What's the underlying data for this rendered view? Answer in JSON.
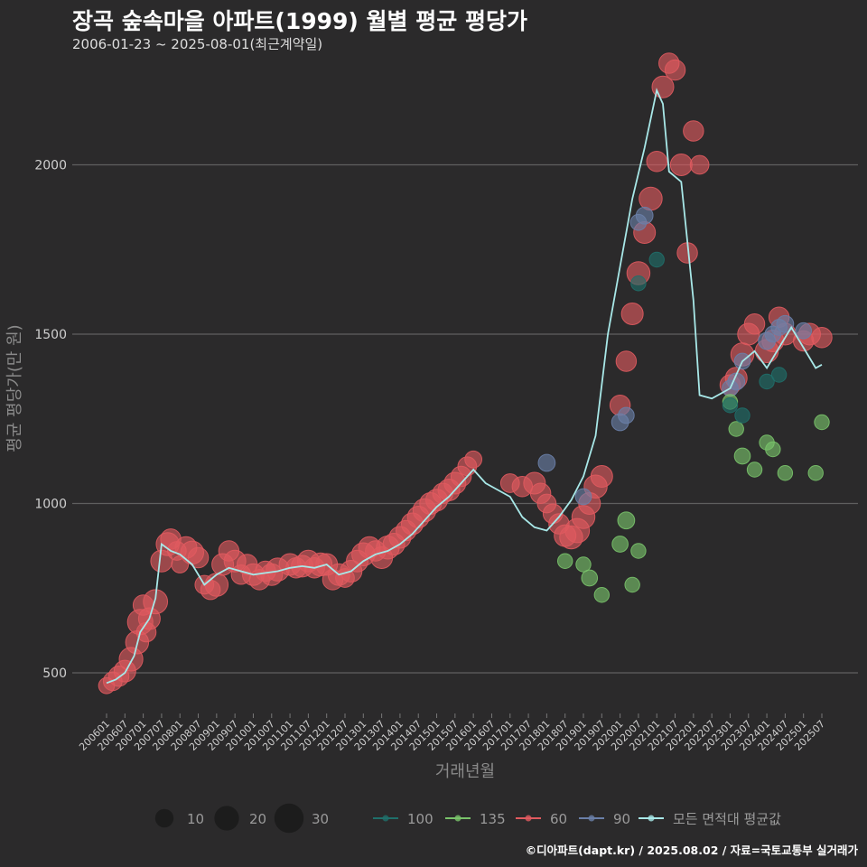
{
  "header": {
    "title": "장곡 숲속마을 아파트(1999) 월별 평균 평당가",
    "subtitle": "2006-01-23 ~ 2025-08-01(최근계약일)"
  },
  "credit": "©디아파트(dapt.kr) / 2025.08.02 / 자료=국토교통부 실거래가",
  "chart_data": {
    "type": "scatter",
    "xlabel": "거래년월",
    "ylabel": "평균 평당가(만 원)",
    "ylim": [
      380,
      2300
    ],
    "yticks": [
      500,
      1000,
      1500,
      2000
    ],
    "grid": true,
    "xticks": [
      "200601",
      "200607",
      "200701",
      "200707",
      "200801",
      "200807",
      "200901",
      "200907",
      "201001",
      "201007",
      "201101",
      "201107",
      "201201",
      "201207",
      "201301",
      "201307",
      "201401",
      "201407",
      "201501",
      "201507",
      "201601",
      "201607",
      "201701",
      "201707",
      "201801",
      "201807",
      "201901",
      "201907",
      "202001",
      "202007",
      "202101",
      "202107",
      "202201",
      "202207",
      "202301",
      "202307",
      "202401",
      "202407",
      "202501",
      "202507"
    ],
    "colors": {
      "100": "#1f6f6a",
      "135": "#79c36a",
      "60": "#e05a5f",
      "90": "#6a7fa8",
      "avg": "#a8e8e8"
    },
    "size_legend": [
      {
        "label": "10",
        "value": 10
      },
      {
        "label": "20",
        "value": 20
      },
      {
        "label": "30",
        "value": 30
      }
    ],
    "color_legend": [
      {
        "key": "100",
        "label": "100"
      },
      {
        "key": "135",
        "label": "135"
      },
      {
        "key": "60",
        "label": "60"
      },
      {
        "key": "90",
        "label": "90"
      },
      {
        "key": "avg",
        "label": "모든 면적대 평균값"
      }
    ],
    "series": [
      {
        "name": "60",
        "key": "60",
        "points": [
          [
            "200601",
            462,
            5
          ],
          [
            "200603",
            475,
            8
          ],
          [
            "200605",
            490,
            10
          ],
          [
            "200607",
            505,
            12
          ],
          [
            "200609",
            540,
            15
          ],
          [
            "200611",
            590,
            14
          ],
          [
            "200612",
            650,
            18
          ],
          [
            "200701",
            700,
            10
          ],
          [
            "200702",
            620,
            9
          ],
          [
            "200703",
            660,
            12
          ],
          [
            "200705",
            710,
            16
          ],
          [
            "200707",
            830,
            12
          ],
          [
            "200709",
            880,
            14
          ],
          [
            "200710",
            895,
            10
          ],
          [
            "200712",
            860,
            8
          ],
          [
            "200801",
            820,
            6
          ],
          [
            "200803",
            870,
            12
          ],
          [
            "200805",
            855,
            14
          ],
          [
            "200807",
            840,
            10
          ],
          [
            "200809",
            760,
            8
          ],
          [
            "200811",
            745,
            9
          ],
          [
            "200901",
            760,
            14
          ],
          [
            "200903",
            820,
            12
          ],
          [
            "200905",
            860,
            10
          ],
          [
            "200907",
            830,
            12
          ],
          [
            "200909",
            790,
            9
          ],
          [
            "200911",
            820,
            10
          ],
          [
            "201001",
            790,
            12
          ],
          [
            "201003",
            775,
            10
          ],
          [
            "201005",
            800,
            10
          ],
          [
            "201007",
            790,
            12
          ],
          [
            "201009",
            805,
            14
          ],
          [
            "201101",
            820,
            12
          ],
          [
            "201103",
            810,
            10
          ],
          [
            "201105",
            815,
            12
          ],
          [
            "201107",
            830,
            12
          ],
          [
            "201109",
            810,
            10
          ],
          [
            "201111",
            820,
            14
          ],
          [
            "201201",
            820,
            12
          ],
          [
            "201203",
            775,
            10
          ],
          [
            "201205",
            790,
            12
          ],
          [
            "201207",
            780,
            8
          ],
          [
            "201209",
            800,
            12
          ],
          [
            "201211",
            830,
            12
          ],
          [
            "201301",
            850,
            14
          ],
          [
            "201303",
            870,
            12
          ],
          [
            "201305",
            860,
            10
          ],
          [
            "201307",
            840,
            12
          ],
          [
            "201309",
            870,
            14
          ],
          [
            "201311",
            880,
            12
          ],
          [
            "201401",
            900,
            12
          ],
          [
            "201403",
            920,
            10
          ],
          [
            "201405",
            940,
            12
          ],
          [
            "201407",
            960,
            12
          ],
          [
            "201409",
            980,
            14
          ],
          [
            "201411",
            1000,
            12
          ],
          [
            "201501",
            1010,
            12
          ],
          [
            "201503",
            1030,
            10
          ],
          [
            "201505",
            1040,
            12
          ],
          [
            "201507",
            1060,
            12
          ],
          [
            "201509",
            1080,
            10
          ],
          [
            "201511",
            1110,
            8
          ],
          [
            "201601",
            1130,
            6
          ],
          [
            "201701",
            1060,
            8
          ],
          [
            "201705",
            1050,
            10
          ],
          [
            "201709",
            1060,
            12
          ],
          [
            "201711",
            1030,
            10
          ],
          [
            "201801",
            1000,
            8
          ],
          [
            "201803",
            970,
            9
          ],
          [
            "201805",
            940,
            10
          ],
          [
            "201807",
            905,
            12
          ],
          [
            "201809",
            900,
            14
          ],
          [
            "201811",
            920,
            16
          ],
          [
            "201901",
            960,
            14
          ],
          [
            "201903",
            1000,
            12
          ],
          [
            "201905",
            1050,
            14
          ],
          [
            "201907",
            1080,
            12
          ],
          [
            "202001",
            1290,
            10
          ],
          [
            "202003",
            1420,
            10
          ],
          [
            "202005",
            1560,
            12
          ],
          [
            "202007",
            1680,
            14
          ],
          [
            "202009",
            1800,
            12
          ],
          [
            "202011",
            1900,
            14
          ],
          [
            "202101",
            2010,
            10
          ],
          [
            "202103",
            2230,
            12
          ],
          [
            "202105",
            2300,
            10
          ],
          [
            "202107",
            2280,
            10
          ],
          [
            "202109",
            2000,
            12
          ],
          [
            "202111",
            1740,
            10
          ],
          [
            "202201",
            2100,
            10
          ],
          [
            "202203",
            2000,
            8
          ],
          [
            "202301",
            1350,
            10
          ],
          [
            "202303",
            1370,
            12
          ],
          [
            "202305",
            1440,
            14
          ],
          [
            "202307",
            1500,
            12
          ],
          [
            "202309",
            1530,
            10
          ],
          [
            "202401",
            1450,
            14
          ],
          [
            "202403",
            1480,
            12
          ],
          [
            "202405",
            1550,
            10
          ],
          [
            "202407",
            1500,
            12
          ],
          [
            "202501",
            1480,
            10
          ],
          [
            "202503",
            1500,
            12
          ],
          [
            "202507",
            1490,
            10
          ]
        ]
      },
      {
        "name": "90",
        "key": "90",
        "points": [
          [
            "201801",
            1120,
            6
          ],
          [
            "201901",
            1020,
            5
          ],
          [
            "202001",
            1240,
            6
          ],
          [
            "202003",
            1260,
            5
          ],
          [
            "202007",
            1830,
            5
          ],
          [
            "202009",
            1850,
            6
          ],
          [
            "202301",
            1340,
            5
          ],
          [
            "202303",
            1360,
            6
          ],
          [
            "202305",
            1420,
            5
          ],
          [
            "202401",
            1480,
            6
          ],
          [
            "202403",
            1500,
            5
          ],
          [
            "202405",
            1520,
            5
          ],
          [
            "202407",
            1530,
            6
          ],
          [
            "202501",
            1510,
            5
          ]
        ]
      },
      {
        "name": "135",
        "key": "135",
        "points": [
          [
            "201807",
            830,
            4
          ],
          [
            "201901",
            820,
            4
          ],
          [
            "201903",
            780,
            5
          ],
          [
            "201907",
            730,
            4
          ],
          [
            "202001",
            880,
            5
          ],
          [
            "202003",
            950,
            6
          ],
          [
            "202005",
            760,
            4
          ],
          [
            "202007",
            860,
            4
          ],
          [
            "202301",
            1300,
            4
          ],
          [
            "202303",
            1220,
            4
          ],
          [
            "202305",
            1140,
            5
          ],
          [
            "202309",
            1100,
            4
          ],
          [
            "202401",
            1180,
            4
          ],
          [
            "202403",
            1160,
            4
          ],
          [
            "202407",
            1090,
            4
          ],
          [
            "202505",
            1090,
            4
          ],
          [
            "202507",
            1240,
            4
          ]
        ]
      },
      {
        "name": "100",
        "key": "100",
        "points": [
          [
            "202007",
            1650,
            4
          ],
          [
            "202101",
            1720,
            4
          ],
          [
            "202301",
            1290,
            4
          ],
          [
            "202305",
            1260,
            4
          ],
          [
            "202401",
            1360,
            4
          ],
          [
            "202405",
            1380,
            4
          ]
        ]
      }
    ],
    "average_line": [
      [
        "200601",
        470
      ],
      [
        "200604",
        480
      ],
      [
        "200607",
        500
      ],
      [
        "200610",
        550
      ],
      [
        "200612",
        620
      ],
      [
        "200703",
        660
      ],
      [
        "200705",
        720
      ],
      [
        "200707",
        880
      ],
      [
        "200710",
        860
      ],
      [
        "200801",
        850
      ],
      [
        "200805",
        820
      ],
      [
        "200809",
        760
      ],
      [
        "200901",
        790
      ],
      [
        "200905",
        810
      ],
      [
        "200909",
        800
      ],
      [
        "201001",
        790
      ],
      [
        "201005",
        795
      ],
      [
        "201009",
        800
      ],
      [
        "201101",
        810
      ],
      [
        "201105",
        815
      ],
      [
        "201109",
        810
      ],
      [
        "201201",
        820
      ],
      [
        "201205",
        790
      ],
      [
        "201209",
        800
      ],
      [
        "201301",
        830
      ],
      [
        "201305",
        850
      ],
      [
        "201309",
        860
      ],
      [
        "201401",
        880
      ],
      [
        "201405",
        910
      ],
      [
        "201409",
        950
      ],
      [
        "201501",
        990
      ],
      [
        "201505",
        1020
      ],
      [
        "201509",
        1060
      ],
      [
        "201601",
        1100
      ],
      [
        "201605",
        1060
      ],
      [
        "201609",
        1040
      ],
      [
        "201701",
        1020
      ],
      [
        "201705",
        960
      ],
      [
        "201709",
        930
      ],
      [
        "201801",
        920
      ],
      [
        "201805",
        960
      ],
      [
        "201809",
        1010
      ],
      [
        "201901",
        1080
      ],
      [
        "201905",
        1200
      ],
      [
        "201909",
        1500
      ],
      [
        "202001",
        1700
      ],
      [
        "202005",
        1900
      ],
      [
        "202009",
        2050
      ],
      [
        "202101",
        2220
      ],
      [
        "202103",
        2180
      ],
      [
        "202105",
        1980
      ],
      [
        "202109",
        1950
      ],
      [
        "202201",
        1600
      ],
      [
        "202203",
        1320
      ],
      [
        "202207",
        1310
      ],
      [
        "202301",
        1340
      ],
      [
        "202305",
        1420
      ],
      [
        "202309",
        1450
      ],
      [
        "202401",
        1400
      ],
      [
        "202405",
        1460
      ],
      [
        "202409",
        1520
      ],
      [
        "202501",
        1460
      ],
      [
        "202505",
        1400
      ],
      [
        "202507",
        1410
      ]
    ]
  }
}
